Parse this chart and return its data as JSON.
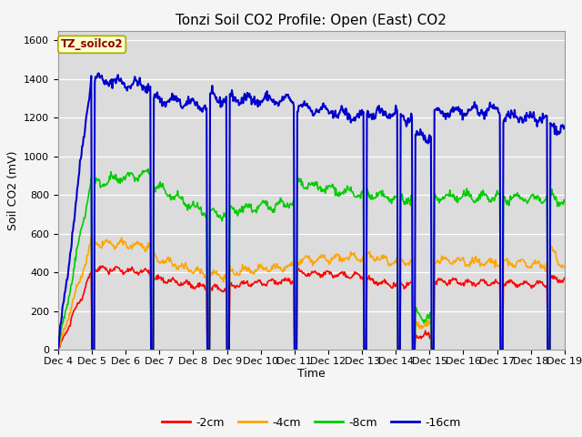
{
  "title": "Tonzi Soil CO2 Profile: Open (East) CO2",
  "ylabel": "Soil CO2 (mV)",
  "xlabel": "Time",
  "ylim": [
    0,
    1650
  ],
  "yticks": [
    0,
    200,
    400,
    600,
    800,
    1000,
    1200,
    1400,
    1600
  ],
  "plot_bg": "#dcdcdc",
  "fig_bg": "#f5f5f5",
  "legend_label": "TZ_soilco2",
  "line_colors": {
    "-2cm": "#ff0000",
    "-4cm": "#ffa500",
    "-8cm": "#00cc00",
    "-16cm": "#0000cc"
  },
  "xticklabels": [
    "Dec 4",
    "Dec 5",
    "Dec 6",
    "Dec 7",
    "Dec 8",
    "Dec 9",
    "Dec 10",
    "Dec 11",
    "Dec 12",
    "Dec 13",
    "Dec 14",
    "Dec 15",
    "Dec 16",
    "Dec 17",
    "Dec 18",
    "Dec 19"
  ],
  "title_fontsize": 11,
  "axis_fontsize": 9,
  "tick_fontsize": 8
}
